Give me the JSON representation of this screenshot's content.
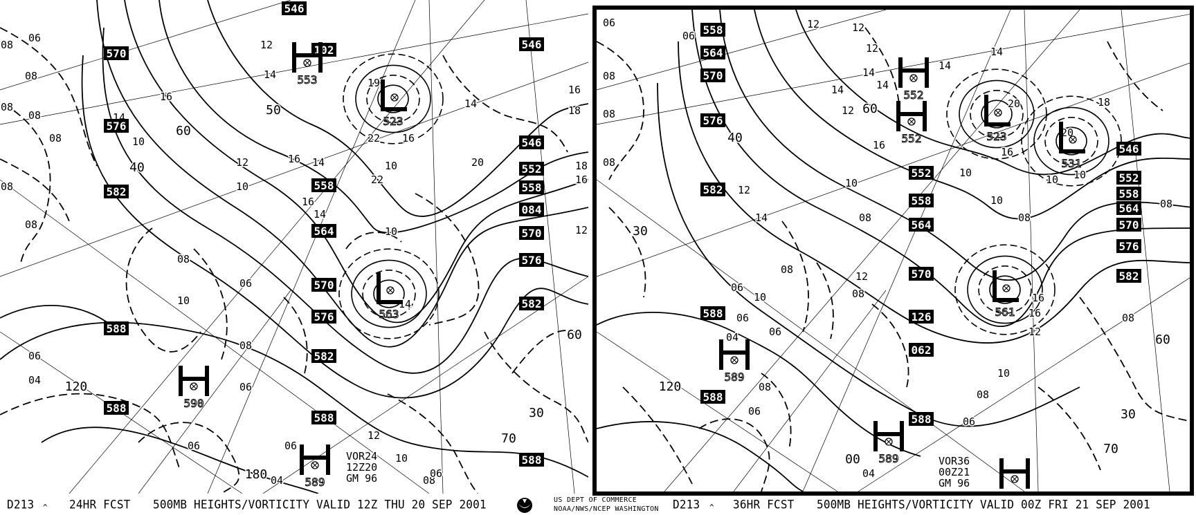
{
  "colors": {
    "ink": "#000000",
    "paper": "#ffffff"
  },
  "agency": {
    "line1": "US DEPT OF COMMERCE",
    "line2": "NOAA/NWS/NCEP WASHINGTON",
    "logo_icon": "noaa-logo-icon"
  },
  "panels": [
    {
      "caption": {
        "product": "D213",
        "marker": "^",
        "forecast": "24HR FCST",
        "title": "500MB HEIGHTS/VORTICITY VALID 12Z THU 20 SEP 2001"
      },
      "height_labels": [
        "546",
        "570",
        "576",
        "582",
        "588",
        "588",
        "102",
        "558",
        "564",
        "570",
        "576",
        "582",
        "588",
        "546",
        "546",
        "552",
        "558",
        "084",
        "570",
        "576",
        "582",
        "588"
      ],
      "centers": [
        {
          "type": "H",
          "value": "553"
        },
        {
          "type": "L",
          "value": "523"
        },
        {
          "type": "L",
          "value": "563"
        },
        {
          "type": "H",
          "value": "590"
        },
        {
          "type": "H",
          "value": "589"
        }
      ],
      "vorticity_labels": [
        "12",
        "14",
        "16",
        "14",
        "10",
        "12",
        "10",
        "16",
        "14",
        "16",
        "14",
        "10",
        "10",
        "14",
        "16",
        "20",
        "16",
        "18",
        "18",
        "16",
        "12",
        "08",
        "08",
        "06",
        "08",
        "08",
        "08",
        "08",
        "08",
        "06",
        "04",
        "08",
        "10",
        "06",
        "08",
        "06",
        "12",
        "10",
        "08",
        "06",
        "22",
        "22",
        "19",
        "14",
        "06",
        "06",
        "04"
      ],
      "lat_labels": [
        "30",
        "60",
        "70",
        "120",
        "180",
        "40",
        "50",
        "60"
      ],
      "info": [
        "VOR24",
        "12Z20",
        "GM 96"
      ]
    },
    {
      "caption": {
        "product": "D213",
        "marker": "^",
        "forecast": "36HR FCST",
        "title": "500MB HEIGHTS/VORTICITY VALID 00Z FRI 21 SEP 2001"
      },
      "height_labels": [
        "558",
        "564",
        "570",
        "576",
        "582",
        "588",
        "588",
        "552",
        "558",
        "564",
        "570",
        "126",
        "062",
        "588",
        "546",
        "552",
        "558",
        "564",
        "570",
        "576",
        "582"
      ],
      "centers": [
        {
          "type": "H",
          "value": "552"
        },
        {
          "type": "H",
          "value": "552"
        },
        {
          "type": "L",
          "value": "523"
        },
        {
          "type": "L",
          "value": "531"
        },
        {
          "type": "L",
          "value": "561"
        },
        {
          "type": "H",
          "value": "589"
        },
        {
          "type": "H",
          "value": "589"
        },
        {
          "type": "H",
          "value": ""
        }
      ],
      "vorticity_labels": [
        "06",
        "08",
        "08",
        "08",
        "06",
        "12",
        "12",
        "12",
        "14",
        "14",
        "12",
        "14",
        "14",
        "14",
        "16",
        "10",
        "12",
        "10",
        "14",
        "10",
        "10",
        "08",
        "08",
        "06",
        "06",
        "04",
        "08",
        "06",
        "06",
        "08",
        "10",
        "12",
        "16",
        "16",
        "12",
        "10",
        "08",
        "08",
        "06",
        "04",
        "08",
        "20",
        "20",
        "16",
        "18",
        "10",
        "08"
      ],
      "lat_labels": [
        "30",
        "60",
        "70",
        "120",
        "00",
        "40",
        "30",
        "60"
      ],
      "info": [
        "VOR36",
        "00Z21",
        "GM 96"
      ]
    }
  ]
}
